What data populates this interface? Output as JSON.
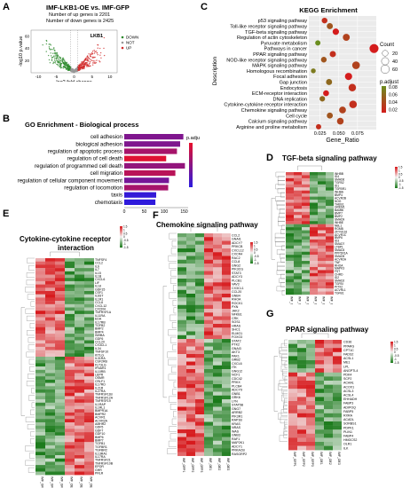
{
  "panels": {
    "A": {
      "label": "A",
      "title": "IMF-LKB1-OE vs. IMF-GFP",
      "up_text": "Number of up genes is 2201",
      "down_text": "Number of down genes is 2425",
      "ylabel": "-log10 p.value",
      "xlabel": "log2 fold change",
      "x_ticks": [
        "-10",
        "-5",
        "0",
        "5",
        "10"
      ],
      "y_ticks": [
        "20",
        "40",
        "60"
      ],
      "gene_label": "LKB1",
      "legend": [
        "DOWN",
        "NOT",
        "UP"
      ]
    },
    "B": {
      "label": "B",
      "title": "GO Enrichment - Biological process",
      "xlabel": "Counts",
      "legend_title": "p.adjust",
      "legend_ticks": [
        "4 × 10⁻⁷",
        "8 × 10⁻⁷",
        "6 × 10⁻⁷",
        "2 × 10⁻⁷",
        "1 × 10⁻⁷"
      ],
      "x_ticks": [
        "0",
        "50",
        "100",
        "150"
      ]
    },
    "C": {
      "label": "C",
      "title": "KEGG Enrichment",
      "ylabel": "Description",
      "xlabel": "Gene_Ratio",
      "x_ticks": [
        "0.025",
        "0.050",
        "0.075"
      ],
      "count_title": "Count",
      "count_values": [
        "20",
        "40",
        "60"
      ],
      "padj_title": "p.adjust",
      "padj_values": [
        "0.08",
        "0.06",
        "0.04",
        "0.02"
      ]
    },
    "D": {
      "label": "D",
      "title": "TGF-beta signaling pathway",
      "genes": [
        "INHBB",
        "ID4",
        "SMAD6",
        "TGFB2",
        "ID1",
        "TGFBR1",
        "INHBA",
        "BMP4",
        "ACVR2B",
        "NOG",
        "THBS1",
        "GREM1",
        "BAMBI",
        "BMP7",
        "BMP2",
        "SMAD9",
        "INHBE",
        "NBL1",
        "RGMB",
        "ZFYVE16",
        "ACVR1C",
        "BMP6",
        "ID3",
        "SMAD7",
        "LTBP1",
        "SMAD3",
        "PPP2R1A",
        "SMAD5",
        "ACVR2A",
        "TNF",
        "RHOA",
        "MAPK3",
        "FST",
        "CHRD",
        "ID2",
        "SMAD2",
        "TGFBI",
        "PITX2",
        "ACVRL1",
        "TGFB1"
      ],
      "samples": [
        "IMF_GFP1",
        "IMF_GFP2",
        "IMF_GFP3",
        "IMF_OE1",
        "IMF_OE2",
        "IMF_OE3"
      ],
      "scale": [
        "1.5",
        "1",
        "0.5",
        "0",
        "-0.5",
        "-1",
        "-1.5"
      ]
    },
    "E": {
      "label": "E",
      "title": "Cytokine-cytokine receptor interaction",
      "genes": [
        "TNFSF4",
        "CCL2",
        "IL6",
        "IL7",
        "IL15",
        "IL1B",
        "CXCL6",
        "LIF",
        "IL18",
        "GDF15",
        "CSF1",
        "IL6ST",
        "IL1R1",
        "CCL8",
        "CXCL12",
        "CXCR4",
        "TNFRSF1A",
        "IL11RA",
        "EDA",
        "IL17RB",
        "TGFB2",
        "BMP2",
        "BMP4",
        "INHBA",
        "GDF6",
        "CCL20",
        "CX3CL1",
        "IL34",
        "TNFSF10",
        "KITLG",
        "IL31RA",
        "CSF2RB",
        "FLT3LG",
        "IFNAR1",
        "IL10RB",
        "LEPR",
        "OSMR",
        "CRLF1",
        "IL17RD",
        "IL21R",
        "IL27RA",
        "TNFRSF11B",
        "TNFRSF12A",
        "TNFRSF19",
        "IL1RAP",
        "IL1RL1",
        "BMPR1A",
        "BMPR2",
        "ACVR1",
        "ACVR2A",
        "AMHR2",
        "GDF5",
        "GDF7",
        "GDF10",
        "BMP6",
        "BMP7",
        "TGFB1",
        "TGFBR1",
        "TGFBR2",
        "IL13RA1",
        "IL17RA",
        "TNFRSF21",
        "TNFRSF10B",
        "EPOR",
        "GHR",
        "PRLR"
      ],
      "samples": [
        "IMF_GFP1",
        "IMF_GFP2",
        "IMF_GFP3",
        "IMF_OE1",
        "IMF_OE2",
        "IMF_OE3"
      ],
      "scale": [
        "1.5",
        "1",
        "0.5",
        "0",
        "-0.5",
        "-1",
        "-1.5"
      ]
    },
    "F": {
      "label": "F",
      "title": "Chemokine signaling pathway",
      "genes": [
        "CCL2",
        "GNAI1",
        "ADCY7",
        "PRKCB",
        "CXCL12",
        "CXCR4",
        "RAC2",
        "CCL8",
        "GNG2",
        "PIK3CG",
        "STAT3",
        "ADCY3",
        "PLCB1",
        "VAV3",
        "CX3CL1",
        "CCL20",
        "GNB4",
        "RHOA",
        "ROCK1",
        "PXN",
        "JAK2",
        "NFKB1",
        "CRK",
        "SOS1",
        "HRAS",
        "SHC1",
        "ELMO1",
        "FOXO3",
        "STAT2",
        "PTK2",
        "GNAI3",
        "AKT3",
        "PAK1",
        "GRB2",
        "CXCL6",
        "ITK",
        "GNG12",
        "NCF1",
        "CDC42",
        "PRKX",
        "PLCB4",
        "ADCY9",
        "GNB1",
        "GRK6",
        "LYN",
        "STAT5B",
        "GNG7",
        "ARRB2",
        "PIK3R1",
        "RAP1B",
        "KRAS",
        "NRAS",
        "WAS",
        "GNB3",
        "RAF1",
        "MAP2K1",
        "ADCY1",
        "PRKACB",
        "RASGRP2"
      ],
      "samples": [
        "IMF_GFP1",
        "IMF_GFP2",
        "IMF_GFP3",
        "IMF_OE1",
        "IMF_OE2",
        "IMF_OE3"
      ],
      "scale": [
        "1.5",
        "1",
        "0.5",
        "0",
        "-0.5",
        "-1",
        "-1.5"
      ]
    },
    "G": {
      "label": "G",
      "title": "PPAR signaling pathway",
      "genes": [
        "CD36",
        "PPARG",
        "CPT1C",
        "FADS2",
        "ACSL1",
        "ME1",
        "LPL",
        "ANGPTL4",
        "PDK4",
        "SCP2",
        "ACAA1",
        "ACOX1",
        "ACSL3",
        "ACSL4",
        "EHHADH",
        "FABP3",
        "ADIPOQ",
        "FABP5",
        "RXRA",
        "ACADL",
        "SORBS1",
        "PDPK1",
        "PLIN1",
        "FABP4",
        "HMGCS2",
        "OLR1",
        "ILK"
      ],
      "samples": [
        "IMF_GFP1",
        "IMF_GFP2",
        "IMF_GFP3",
        "IMF_OE1",
        "IMF_OE2",
        "IMF_OE3"
      ],
      "scale": [
        "1.5",
        "1",
        "0.5",
        "0",
        "-0.5",
        "-1",
        "-1.5"
      ]
    }
  },
  "chart_data": [
    {
      "type": "scatter",
      "title": "IMF-LKB1-OE vs. IMF-GFP",
      "xlabel": "log2 fold change",
      "ylabel": "-log10 p.value",
      "xlim": [
        -12,
        12
      ],
      "ylim": [
        0,
        70
      ],
      "series": [
        {
          "name": "DOWN",
          "color": "#2e8b2e"
        },
        {
          "name": "NOT",
          "color": "#999999"
        },
        {
          "name": "UP",
          "color": "#d22a2a"
        }
      ],
      "annotation": {
        "text": "LKB1",
        "x": 4.5,
        "y": 58
      }
    },
    {
      "type": "bar",
      "title": "GO Enrichment - Biological process",
      "xlabel": "Counts",
      "categories": [
        "cell adhesion",
        "biological adhesion",
        "regulation of apoptotic process",
        "regulation of cell death",
        "regulation of programmed cell death",
        "cell migration",
        "regulation of cellular component movement",
        "regulation of locomotion",
        "taxis",
        "chemotaxis"
      ],
      "values": [
        148,
        140,
        132,
        105,
        152,
        128,
        112,
        110,
        80,
        78
      ],
      "padj_fraction": [
        0.55,
        0.55,
        0.35,
        0.05,
        0.45,
        0.25,
        0.6,
        0.35,
        0.95,
        0.98
      ],
      "xlim": [
        0,
        160
      ]
    },
    {
      "type": "scatter",
      "title": "KEGG Enrichment",
      "xlabel": "Gene_Ratio",
      "ylabel": "Description",
      "categories": [
        "p53 signaling pathway",
        "Toll-like receptor signaling pathway",
        "TGF-beta signaling pathway",
        "Regulation of actin cytoskeleton",
        "Pyruvate metabolism",
        "Pathways in cancer",
        "PPAR signaling pathway",
        "NOD-like receptor signaling pathway",
        "MAPK signaling pathway",
        "Homologous recombination",
        "Focal adhesion",
        "Gap junction",
        "Endocytosis",
        "ECM-receptor interaction",
        "DNA replication",
        "Cytokine-cytokine receptor interaction",
        "Chemokine signaling pathway",
        "Cell cycle",
        "Calcium signaling pathway",
        "Arginine and proline metabolism"
      ],
      "gene_ratio": [
        0.031,
        0.038,
        0.046,
        0.06,
        0.022,
        0.097,
        0.042,
        0.03,
        0.073,
        0.016,
        0.063,
        0.037,
        0.068,
        0.033,
        0.028,
        0.069,
        0.055,
        0.038,
        0.052,
        0.023
      ],
      "count": [
        18,
        22,
        26,
        34,
        14,
        70,
        24,
        18,
        46,
        10,
        38,
        22,
        42,
        20,
        16,
        44,
        32,
        22,
        30,
        14
      ],
      "p_adjust": [
        0.03,
        0.05,
        0.02,
        0.04,
        0.08,
        0.02,
        0.03,
        0.05,
        0.04,
        0.07,
        0.02,
        0.06,
        0.03,
        0.02,
        0.06,
        0.03,
        0.04,
        0.05,
        0.04,
        0.03
      ],
      "xlim": [
        0.01,
        0.1
      ]
    }
  ],
  "colors": {
    "red": "#d7191c",
    "green": "#1a7a1a",
    "white": "#f7f7f7"
  }
}
